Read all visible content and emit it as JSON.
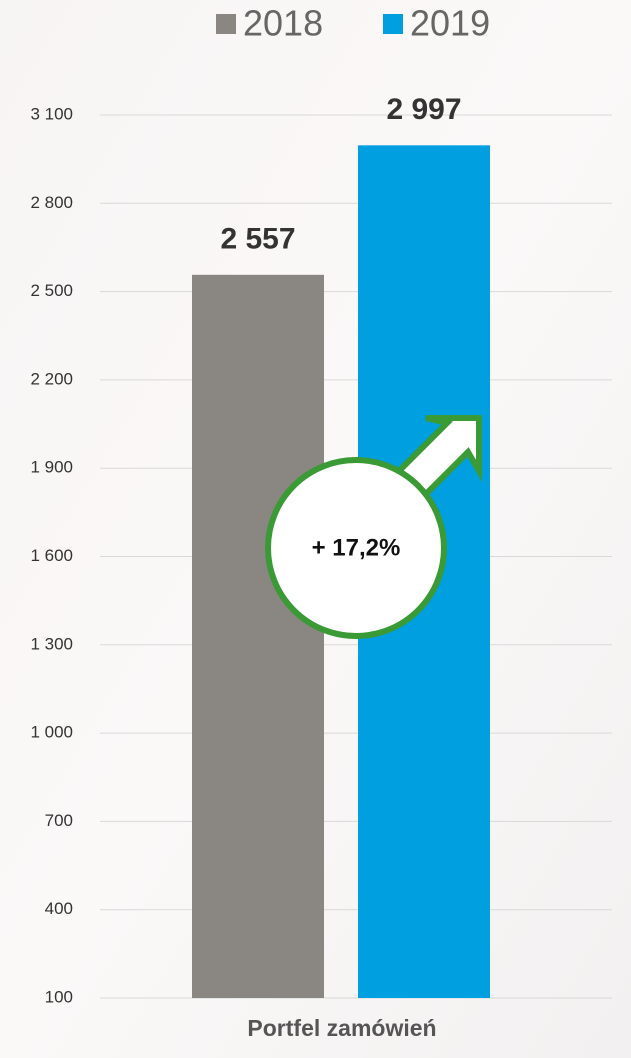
{
  "chart_data": {
    "type": "bar",
    "categories": [
      "Portfel zamówień"
    ],
    "series": [
      {
        "name": "2018",
        "color": "#8a8682",
        "values": [
          2557
        ],
        "value_labels": [
          "2 557"
        ]
      },
      {
        "name": "2019",
        "color": "#009fdf",
        "values": [
          2997
        ],
        "value_labels": [
          "2 997"
        ]
      }
    ],
    "ylim": [
      100,
      3100
    ],
    "yticks": [
      100,
      400,
      700,
      {
        "value": 1000,
        "label": "1 000"
      },
      {
        "value": 1300,
        "label": "1 300"
      },
      {
        "value": 1600,
        "label": "1 600"
      },
      {
        "value": 1900,
        "label": "1 900"
      },
      {
        "value": 2200,
        "label": "2 200"
      },
      {
        "value": 2500,
        "label": "2 500"
      },
      {
        "value": 2800,
        "label": "2 800"
      },
      {
        "value": 3100,
        "label": "3 100"
      }
    ],
    "grid": true,
    "legend": "top",
    "annotation": "+ 17,2%"
  }
}
